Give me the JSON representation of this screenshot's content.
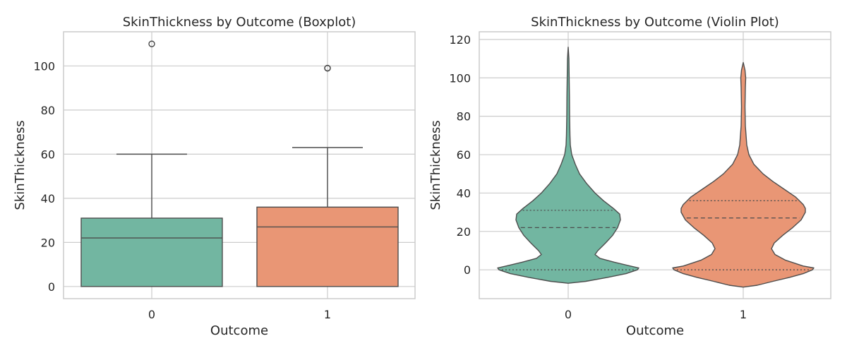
{
  "chart_data": [
    {
      "type": "boxplot",
      "title": "SkinThickness by Outcome (Boxplot)",
      "xlabel": "Outcome",
      "ylabel": "SkinThickness",
      "categories": [
        "0",
        "1"
      ],
      "ylim": [
        -5.5,
        115.5
      ],
      "yticks": [
        0,
        20,
        40,
        60,
        80,
        100
      ],
      "grid": true,
      "boxes": [
        {
          "category": "0",
          "min": 0,
          "q1": 0,
          "median": 22,
          "q3": 31,
          "max": 60,
          "outliers": [
            110
          ],
          "color": "#72b6a1"
        },
        {
          "category": "1",
          "min": 0,
          "q1": 0,
          "median": 27,
          "q3": 36,
          "max": 63,
          "outliers": [
            99,
            99
          ],
          "color": "#e99675"
        }
      ]
    },
    {
      "type": "violin",
      "title": "SkinThickness by Outcome (Violin Plot)",
      "xlabel": "Outcome",
      "ylabel": "SkinThickness",
      "categories": [
        "0",
        "1"
      ],
      "ylim": [
        -15,
        124
      ],
      "yticks": [
        0,
        20,
        40,
        60,
        80,
        100,
        120
      ],
      "grid": true,
      "violins": [
        {
          "category": "0",
          "color": "#72b6a1",
          "quartiles": {
            "q1": 0,
            "median": 22,
            "q3": 31
          },
          "profile": [
            [
              -7,
              0.0
            ],
            [
              -6,
              0.25
            ],
            [
              -4,
              0.55
            ],
            [
              -2,
              0.82
            ],
            [
              0,
              0.98
            ],
            [
              1,
              1.0
            ],
            [
              2,
              0.88
            ],
            [
              4,
              0.65
            ],
            [
              6,
              0.45
            ],
            [
              8,
              0.38
            ],
            [
              10,
              0.42
            ],
            [
              14,
              0.53
            ],
            [
              18,
              0.63
            ],
            [
              22,
              0.7
            ],
            [
              26,
              0.74
            ],
            [
              29,
              0.73
            ],
            [
              32,
              0.64
            ],
            [
              36,
              0.5
            ],
            [
              40,
              0.38
            ],
            [
              45,
              0.26
            ],
            [
              50,
              0.16
            ],
            [
              55,
              0.1
            ],
            [
              60,
              0.05
            ],
            [
              65,
              0.03
            ],
            [
              70,
              0.025
            ],
            [
              80,
              0.02
            ],
            [
              90,
              0.018
            ],
            [
              100,
              0.014
            ],
            [
              110,
              0.01
            ],
            [
              116,
              0.0
            ]
          ]
        },
        {
          "category": "1",
          "color": "#e99675",
          "quartiles": {
            "q1": 0,
            "median": 27,
            "q3": 36
          },
          "profile": [
            [
              -9,
              0.0
            ],
            [
              -8,
              0.2
            ],
            [
              -6,
              0.42
            ],
            [
              -4,
              0.65
            ],
            [
              -2,
              0.85
            ],
            [
              0,
              0.98
            ],
            [
              1,
              1.0
            ],
            [
              2,
              0.85
            ],
            [
              5,
              0.6
            ],
            [
              8,
              0.45
            ],
            [
              11,
              0.4
            ],
            [
              14,
              0.44
            ],
            [
              18,
              0.56
            ],
            [
              22,
              0.7
            ],
            [
              26,
              0.82
            ],
            [
              30,
              0.88
            ],
            [
              32,
              0.88
            ],
            [
              34,
              0.85
            ],
            [
              38,
              0.74
            ],
            [
              42,
              0.58
            ],
            [
              46,
              0.42
            ],
            [
              50,
              0.28
            ],
            [
              55,
              0.15
            ],
            [
              60,
              0.08
            ],
            [
              65,
              0.05
            ],
            [
              70,
              0.04
            ],
            [
              75,
              0.03
            ],
            [
              85,
              0.025
            ],
            [
              95,
              0.03
            ],
            [
              100,
              0.035
            ],
            [
              104,
              0.025
            ],
            [
              108,
              0.0
            ]
          ]
        }
      ]
    }
  ]
}
